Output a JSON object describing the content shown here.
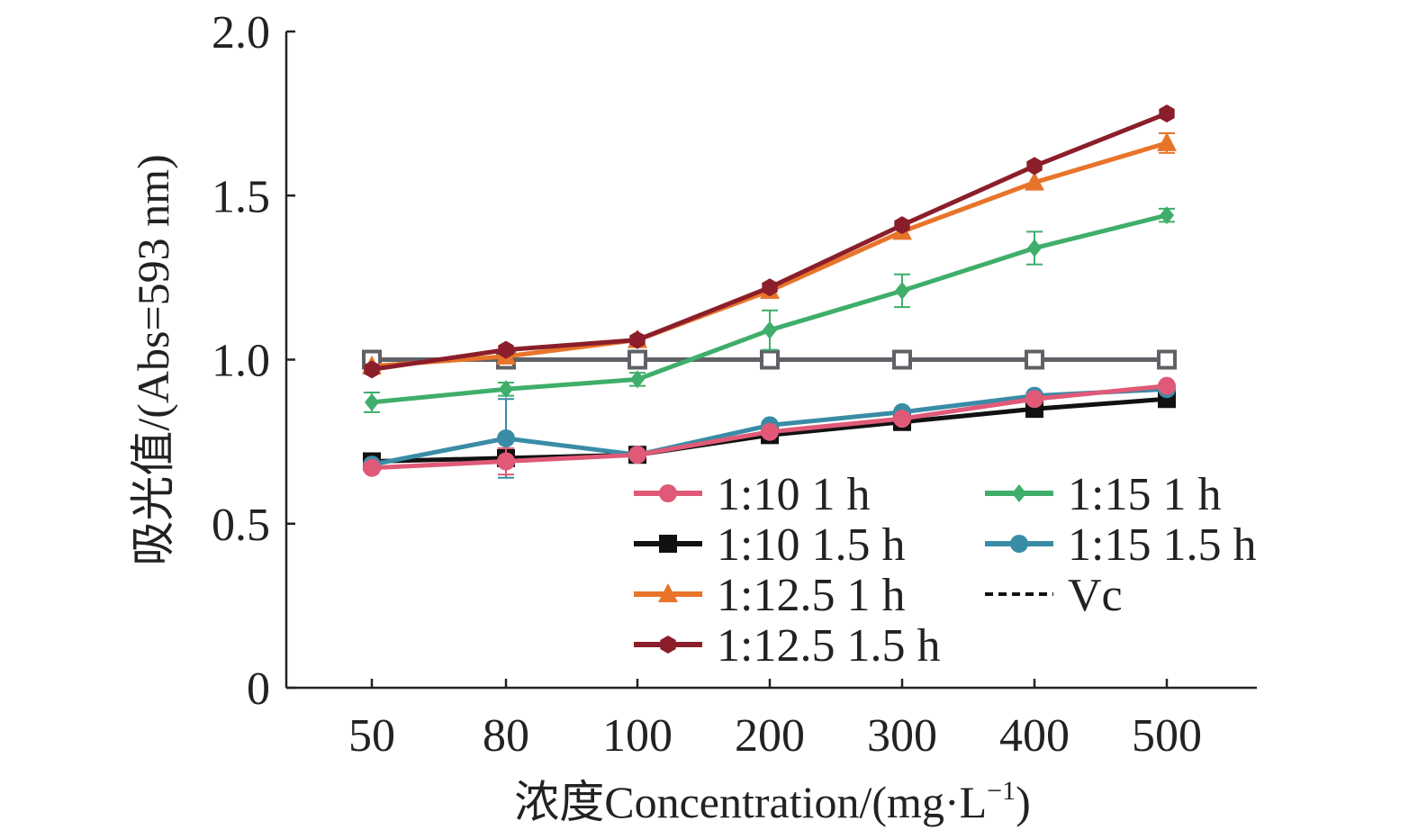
{
  "chart_data": {
    "type": "line",
    "title": "",
    "xlabel": "浓度Concentration/(mg·L",
    "xlabel_sup": "−1",
    "xlabel_close": ")",
    "ylabel": "吸光值/(Abs=593 nm)",
    "categories": [
      "50",
      "80",
      "100",
      "200",
      "300",
      "400",
      "500"
    ],
    "y_ticks": [
      "0",
      "0.5",
      "1.0",
      "1.5",
      "2.0"
    ],
    "ylim": [
      0,
      2.0
    ],
    "grid": false,
    "legend_position": "bottom-right inside plot, two columns",
    "series": [
      {
        "name": "1:10 1 h",
        "color": "#e05a78",
        "marker": "circle",
        "values": [
          0.67,
          0.69,
          0.71,
          0.78,
          0.82,
          0.88,
          0.92
        ],
        "errors": [
          0.0,
          0.04,
          0.0,
          0.0,
          0.0,
          0.0,
          0.0
        ]
      },
      {
        "name": "1:10 1.5 h",
        "color": "#111111",
        "marker": "square",
        "values": [
          0.69,
          0.7,
          0.71,
          0.77,
          0.81,
          0.85,
          0.88
        ],
        "errors": [
          0,
          0,
          0,
          0,
          0,
          0,
          0
        ]
      },
      {
        "name": "1:12.5 1 h",
        "color": "#e8742a",
        "marker": "triangle",
        "values": [
          0.98,
          1.01,
          1.06,
          1.21,
          1.39,
          1.54,
          1.66
        ],
        "errors": [
          0.0,
          0.0,
          0.0,
          0.0,
          0.0,
          0.0,
          0.03
        ]
      },
      {
        "name": "1:12.5 1.5 h",
        "color": "#8b1e2a",
        "marker": "hexagon",
        "values": [
          0.97,
          1.03,
          1.06,
          1.22,
          1.41,
          1.59,
          1.75
        ],
        "errors": [
          0,
          0,
          0,
          0,
          0,
          0,
          0
        ]
      },
      {
        "name": "1:15 1 h",
        "color": "#3fae6a",
        "marker": "diamond",
        "values": [
          0.87,
          0.91,
          0.94,
          1.09,
          1.21,
          1.34,
          1.44
        ],
        "errors": [
          0.03,
          0.02,
          0.02,
          0.06,
          0.05,
          0.05,
          0.02
        ]
      },
      {
        "name": "1:15 1.5 h",
        "color": "#3a8ca6",
        "marker": "circle",
        "values": [
          0.68,
          0.76,
          0.71,
          0.8,
          0.84,
          0.89,
          0.91
        ],
        "errors": [
          0.0,
          0.12,
          0.0,
          0.0,
          0.0,
          0.0,
          0.0
        ]
      },
      {
        "name": "Vc",
        "color": "#5f6166",
        "marker": "open-square",
        "dashed": true,
        "legend_color": "#111111",
        "values": [
          1.0,
          1.0,
          1.0,
          1.0,
          1.0,
          1.0,
          1.0
        ],
        "errors": [
          0,
          0,
          0,
          0,
          0,
          0,
          0
        ]
      }
    ],
    "legend_order": [
      0,
      4,
      1,
      5,
      2,
      6,
      3
    ]
  }
}
